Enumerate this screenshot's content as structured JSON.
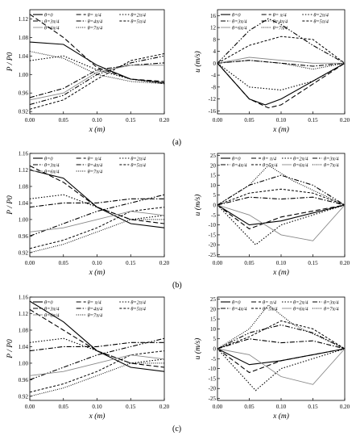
{
  "figure": {
    "captions": [
      "(a)",
      "(b)",
      "(c)"
    ]
  },
  "chart_data": [
    {
      "id": "a-left",
      "type": "line",
      "xlabel": "x (m)",
      "ylabel": "P / P0",
      "xlim": [
        0,
        0.2
      ],
      "ylim": [
        0.915,
        1.14
      ],
      "xticks": [
        "0.00",
        "0.05",
        "0.10",
        "0.15",
        "0.20"
      ],
      "yticks": [
        "0.92",
        "0.96",
        "1.00",
        "1.04",
        "1.08",
        "1.12"
      ],
      "xtickvals": [
        0,
        0.05,
        0.1,
        0.15,
        0.2
      ],
      "ytickvals": [
        0.92,
        0.96,
        1.0,
        1.04,
        1.08,
        1.12
      ],
      "legend_cols": 3,
      "legend": [
        "θ=0",
        "θ= π/4",
        "θ=2π/4",
        "θ=3π/4",
        "θ=4π/4",
        "θ=5π/4",
        "θ=6π/4",
        "θ=7π/4"
      ],
      "series": [
        {
          "name": "θ=0",
          "x": [
            0,
            0.05,
            0.1,
            0.15,
            0.2
          ],
          "y": [
            1.07,
            1.065,
            1.02,
            0.99,
            0.982
          ]
        },
        {
          "name": "θ= π/4",
          "x": [
            0,
            0.05,
            0.1,
            0.15,
            0.2
          ],
          "y": [
            1.13,
            1.08,
            1.015,
            0.99,
            0.985
          ]
        },
        {
          "name": "θ=2π/4",
          "x": [
            0,
            0.05,
            0.1,
            0.15,
            0.2
          ],
          "y": [
            1.03,
            1.04,
            1.01,
            0.99,
            0.98
          ]
        },
        {
          "name": "θ=3π/4",
          "x": [
            0,
            0.05,
            0.1,
            0.15,
            0.2
          ],
          "y": [
            0.95,
            0.97,
            1.01,
            1.02,
            1.025
          ]
        },
        {
          "name": "θ=4π/4",
          "x": [
            0,
            0.05,
            0.1,
            0.15,
            0.2
          ],
          "y": [
            0.935,
            0.955,
            1.0,
            1.025,
            1.04
          ]
        },
        {
          "name": "θ=5π/4",
          "x": [
            0,
            0.05,
            0.1,
            0.15,
            0.2
          ],
          "y": [
            0.925,
            0.945,
            0.99,
            1.03,
            1.045
          ]
        },
        {
          "name": "θ=6π/4",
          "x": [
            0,
            0.05,
            0.1,
            0.15,
            0.2
          ],
          "y": [
            0.945,
            0.96,
            1.005,
            1.02,
            1.02
          ]
        },
        {
          "name": "θ=7π/4",
          "x": [
            0,
            0.05,
            0.1,
            0.15,
            0.2
          ],
          "y": [
            1.05,
            1.035,
            1.0,
            0.985,
            0.98
          ]
        }
      ]
    },
    {
      "id": "a-right",
      "type": "line",
      "xlabel": "x (m)",
      "ylabel": "u (m/s)",
      "xlim": [
        0,
        0.2
      ],
      "ylim": [
        -17,
        18
      ],
      "xticks": [
        "0.00",
        "0.05",
        "0.10",
        "0.15",
        "0.20"
      ],
      "yticks": [
        "-16",
        "-12",
        "-8",
        "-4",
        "0",
        "4",
        "8",
        "12",
        "16"
      ],
      "xtickvals": [
        0,
        0.05,
        0.1,
        0.15,
        0.2
      ],
      "ytickvals": [
        -16,
        -12,
        -8,
        -4,
        0,
        4,
        8,
        12,
        16
      ],
      "legend_cols": 3,
      "legend": [
        "θ=0",
        "θ= π/4",
        "θ=2π/4",
        "θ=3π/4",
        "θ=4π/4",
        "θ=5π/4",
        "θ=6π/4",
        "θ=7π/4"
      ],
      "series": [
        {
          "name": "θ=0",
          "x": [
            0,
            0.05,
            0.075,
            0.1,
            0.15,
            0.2
          ],
          "y": [
            0,
            -12,
            -14,
            -12,
            -6,
            0
          ]
        },
        {
          "name": "θ= π/4",
          "x": [
            0,
            0.05,
            0.08,
            0.1,
            0.15,
            0.2
          ],
          "y": [
            0,
            -12,
            -15,
            -14,
            -7,
            0
          ]
        },
        {
          "name": "θ=2π/4",
          "x": [
            0,
            0.05,
            0.1,
            0.15,
            0.2
          ],
          "y": [
            0,
            -8,
            -9,
            -6,
            0
          ]
        },
        {
          "name": "θ=3π/4",
          "x": [
            0,
            0.05,
            0.1,
            0.15,
            0.2
          ],
          "y": [
            0,
            1,
            0,
            -1,
            0
          ]
        },
        {
          "name": "θ=4π/4",
          "x": [
            0,
            0.05,
            0.08,
            0.1,
            0.15,
            0.2
          ],
          "y": [
            0,
            11,
            15,
            13,
            6,
            0
          ]
        },
        {
          "name": "θ=5π/4",
          "x": [
            0,
            0.05,
            0.1,
            0.15,
            0.2
          ],
          "y": [
            0,
            6,
            9,
            8,
            0
          ]
        },
        {
          "name": "θ=6π/4",
          "x": [
            0,
            0.05,
            0.1,
            0.15,
            0.2
          ],
          "y": [
            0,
            2,
            1,
            0,
            0
          ]
        },
        {
          "name": "θ=7π/4",
          "x": [
            0,
            0.05,
            0.1,
            0.15,
            0.2
          ],
          "y": [
            0,
            1,
            0,
            -2,
            0
          ]
        }
      ]
    },
    {
      "id": "b-left",
      "type": "line",
      "xlabel": "x (m)",
      "ylabel": "P / P0",
      "xlim": [
        0,
        0.2
      ],
      "ylim": [
        0.91,
        1.16
      ],
      "xticks": [
        "0.00",
        "0.05",
        "0.10",
        "0.15",
        "0.20"
      ],
      "yticks": [
        "0.92",
        "0.96",
        "1.00",
        "1.04",
        "1.08",
        "1.12",
        "1.16"
      ],
      "xtickvals": [
        0,
        0.05,
        0.1,
        0.15,
        0.2
      ],
      "ytickvals": [
        0.92,
        0.96,
        1.0,
        1.04,
        1.08,
        1.12,
        1.16
      ],
      "legend_cols": 3,
      "legend": [
        "θ=0",
        "θ= π/4",
        "θ=2π/4",
        "θ=3π/4",
        "θ=4π/4",
        "θ=5π/4",
        "θ=6π/4",
        "θ=7π/4"
      ],
      "series": [
        {
          "name": "θ=0",
          "x": [
            0,
            0.05,
            0.1,
            0.15,
            0.2
          ],
          "y": [
            1.12,
            1.1,
            1.03,
            0.99,
            0.98
          ]
        },
        {
          "name": "θ= π/4",
          "x": [
            0,
            0.05,
            0.1,
            0.15,
            0.2
          ],
          "y": [
            1.13,
            1.09,
            1.03,
            1.0,
            0.99
          ]
        },
        {
          "name": "θ=2π/4",
          "x": [
            0,
            0.05,
            0.1,
            0.15,
            0.2
          ],
          "y": [
            1.05,
            1.06,
            1.03,
            1.0,
            1.01
          ]
        },
        {
          "name": "θ=3π/4",
          "x": [
            0,
            0.05,
            0.1,
            0.15,
            0.2
          ],
          "y": [
            1.03,
            1.04,
            1.04,
            1.05,
            1.05
          ]
        },
        {
          "name": "θ=4π/4",
          "x": [
            0,
            0.05,
            0.1,
            0.15,
            0.2
          ],
          "y": [
            0.96,
            0.99,
            1.02,
            1.04,
            1.06
          ]
        },
        {
          "name": "θ=5π/4",
          "x": [
            0,
            0.05,
            0.1,
            0.15,
            0.2
          ],
          "y": [
            0.93,
            0.95,
            0.98,
            1.02,
            1.03
          ]
        },
        {
          "name": "θ=6π/4",
          "x": [
            0,
            0.05,
            0.1,
            0.15,
            0.2
          ],
          "y": [
            0.97,
            0.98,
            1.0,
            1.02,
            1.01
          ]
        },
        {
          "name": "θ=7π/4",
          "x": [
            0,
            0.05,
            0.1,
            0.15,
            0.2
          ],
          "y": [
            0.92,
            0.94,
            0.97,
            1.0,
            1.0
          ]
        }
      ]
    },
    {
      "id": "b-right",
      "type": "line",
      "xlabel": "x (m)",
      "ylabel": "u (m/s)",
      "xlim": [
        0,
        0.2
      ],
      "ylim": [
        -26,
        26
      ],
      "xticks": [
        "0.00",
        "0.05",
        "0.10",
        "0.15",
        "0.20"
      ],
      "yticks": [
        "-25",
        "-20",
        "-15",
        "-10",
        "-5",
        "0",
        "5",
        "10",
        "15",
        "20",
        "25"
      ],
      "xtickvals": [
        0,
        0.05,
        0.1,
        0.15,
        0.2
      ],
      "ytickvals": [
        -25,
        -20,
        -15,
        -10,
        -5,
        0,
        5,
        10,
        15,
        20,
        25
      ],
      "legend_cols": 4,
      "legend": [
        "θ=0",
        "θ= π/4",
        "θ=2π/4",
        "θ=3π/4",
        "θ=4π/4",
        "θ=5π/4",
        "θ=6π/4",
        "θ=7π/4"
      ],
      "series": [
        {
          "name": "θ=0",
          "x": [
            0,
            0.05,
            0.1,
            0.15,
            0.2
          ],
          "y": [
            0,
            -10,
            -8,
            -4,
            0
          ]
        },
        {
          "name": "θ= π/4",
          "x": [
            0,
            0.05,
            0.1,
            0.15,
            0.2
          ],
          "y": [
            0,
            -12,
            -6,
            -3,
            0
          ]
        },
        {
          "name": "θ=2π/4",
          "x": [
            0,
            0.06,
            0.1,
            0.15,
            0.2
          ],
          "y": [
            0,
            -20,
            -10,
            -5,
            0
          ]
        },
        {
          "name": "θ=3π/4",
          "x": [
            0,
            0.05,
            0.1,
            0.15,
            0.2
          ],
          "y": [
            0,
            4,
            3,
            4,
            0
          ]
        },
        {
          "name": "θ=4π/4",
          "x": [
            0,
            0.05,
            0.1,
            0.15,
            0.2
          ],
          "y": [
            0,
            10,
            15,
            10,
            0
          ]
        },
        {
          "name": "θ=5π/4",
          "x": [
            0,
            0.05,
            0.1,
            0.15,
            0.2
          ],
          "y": [
            0,
            6,
            8,
            6,
            0
          ]
        },
        {
          "name": "θ=6π/4",
          "x": [
            0,
            0.05,
            0.1,
            0.15,
            0.2
          ],
          "y": [
            0,
            -5,
            -15,
            -18,
            0
          ]
        },
        {
          "name": "θ=7π/4",
          "x": [
            0,
            0.05,
            0.08,
            0.12,
            0.2
          ],
          "y": [
            0,
            10,
            20,
            12,
            0
          ]
        }
      ]
    },
    {
      "id": "c-left",
      "type": "line",
      "xlabel": "x (m)",
      "ylabel": "P / P0",
      "xlim": [
        0,
        0.2
      ],
      "ylim": [
        0.91,
        1.16
      ],
      "xticks": [
        "0.00",
        "0.05",
        "0.10",
        "0.15",
        "0.20"
      ],
      "yticks": [
        "0.92",
        "0.96",
        "1.00",
        "1.04",
        "1.08",
        "1.12",
        "1.16"
      ],
      "xtickvals": [
        0,
        0.05,
        0.1,
        0.15,
        0.2
      ],
      "ytickvals": [
        0.92,
        0.96,
        1.0,
        1.04,
        1.08,
        1.12,
        1.16
      ],
      "legend_cols": 3,
      "legend": [
        "θ=0",
        "θ= π/4",
        "θ=2π/4",
        "θ=3π/4",
        "θ=4π/4",
        "θ=5π/4",
        "θ=6π/4",
        "θ=7π/4"
      ],
      "series": [
        {
          "name": "θ=0",
          "x": [
            0,
            0.05,
            0.1,
            0.15,
            0.2
          ],
          "y": [
            1.15,
            1.1,
            1.03,
            0.99,
            0.98
          ]
        },
        {
          "name": "θ= π/4",
          "x": [
            0,
            0.05,
            0.1,
            0.15,
            0.2
          ],
          "y": [
            1.13,
            1.08,
            1.03,
            1.0,
            0.99
          ]
        },
        {
          "name": "θ=2π/4",
          "x": [
            0,
            0.05,
            0.1,
            0.15,
            0.2
          ],
          "y": [
            1.05,
            1.06,
            1.03,
            1.0,
            1.01
          ]
        },
        {
          "name": "θ=3π/4",
          "x": [
            0,
            0.05,
            0.1,
            0.15,
            0.2
          ],
          "y": [
            1.03,
            1.04,
            1.04,
            1.05,
            1.05
          ]
        },
        {
          "name": "θ=4π/4",
          "x": [
            0,
            0.05,
            0.1,
            0.15,
            0.2
          ],
          "y": [
            0.96,
            0.99,
            1.02,
            1.04,
            1.06
          ]
        },
        {
          "name": "θ=5π/4",
          "x": [
            0,
            0.05,
            0.1,
            0.15,
            0.2
          ],
          "y": [
            0.93,
            0.95,
            0.98,
            1.02,
            1.03
          ]
        },
        {
          "name": "θ=6π/4",
          "x": [
            0,
            0.05,
            0.1,
            0.15,
            0.2
          ],
          "y": [
            0.97,
            0.98,
            1.0,
            1.02,
            1.01
          ]
        },
        {
          "name": "θ=7π/4",
          "x": [
            0,
            0.05,
            0.1,
            0.15,
            0.2
          ],
          "y": [
            0.92,
            0.94,
            0.97,
            1.0,
            1.0
          ]
        }
      ]
    },
    {
      "id": "c-right",
      "type": "line",
      "xlabel": "x (m)",
      "ylabel": "u (m/s)",
      "xlim": [
        0,
        0.2
      ],
      "ylim": [
        -26,
        26
      ],
      "xticks": [
        "0.00",
        "0.05",
        "0.10",
        "0.15",
        "0.20"
      ],
      "yticks": [
        "-25",
        "-20",
        "-15",
        "-10",
        "-5",
        "0",
        "5",
        "10",
        "15",
        "20",
        "25"
      ],
      "xtickvals": [
        0,
        0.05,
        0.1,
        0.15,
        0.2
      ],
      "ytickvals": [
        -25,
        -20,
        -15,
        -10,
        -5,
        0,
        5,
        10,
        15,
        20,
        25
      ],
      "legend_cols": 4,
      "legend": [
        "θ=0",
        "θ= π/4",
        "θ=2π/4",
        "θ=3π/4",
        "θ=4π/4",
        "θ=5π/4",
        "θ=6π/4",
        "θ=7π/4"
      ],
      "series": [
        {
          "name": "θ=0",
          "x": [
            0,
            0.05,
            0.1,
            0.15,
            0.2
          ],
          "y": [
            0,
            -8,
            -6,
            -3,
            0
          ]
        },
        {
          "name": "θ= π/4",
          "x": [
            0,
            0.05,
            0.1,
            0.15,
            0.2
          ],
          "y": [
            0,
            -12,
            -6,
            -3,
            0
          ]
        },
        {
          "name": "θ=2π/4",
          "x": [
            0,
            0.06,
            0.1,
            0.15,
            0.2
          ],
          "y": [
            0,
            -21,
            -10,
            -5,
            0
          ]
        },
        {
          "name": "θ=3π/4",
          "x": [
            0,
            0.05,
            0.1,
            0.15,
            0.2
          ],
          "y": [
            0,
            5,
            3,
            4,
            0
          ]
        },
        {
          "name": "θ=4π/4",
          "x": [
            0,
            0.05,
            0.1,
            0.15,
            0.2
          ],
          "y": [
            0,
            8,
            12,
            8,
            0
          ]
        },
        {
          "name": "θ=5π/4",
          "x": [
            0,
            0.05,
            0.1,
            0.15,
            0.2
          ],
          "y": [
            0,
            6,
            14,
            10,
            0
          ]
        },
        {
          "name": "θ=6π/4",
          "x": [
            0,
            0.05,
            0.1,
            0.15,
            0.2
          ],
          "y": [
            0,
            -3,
            -14,
            -18,
            0
          ]
        },
        {
          "name": "θ=7π/4",
          "x": [
            0,
            0.05,
            0.08,
            0.12,
            0.2
          ],
          "y": [
            0,
            10,
            22,
            12,
            0
          ]
        }
      ]
    }
  ]
}
